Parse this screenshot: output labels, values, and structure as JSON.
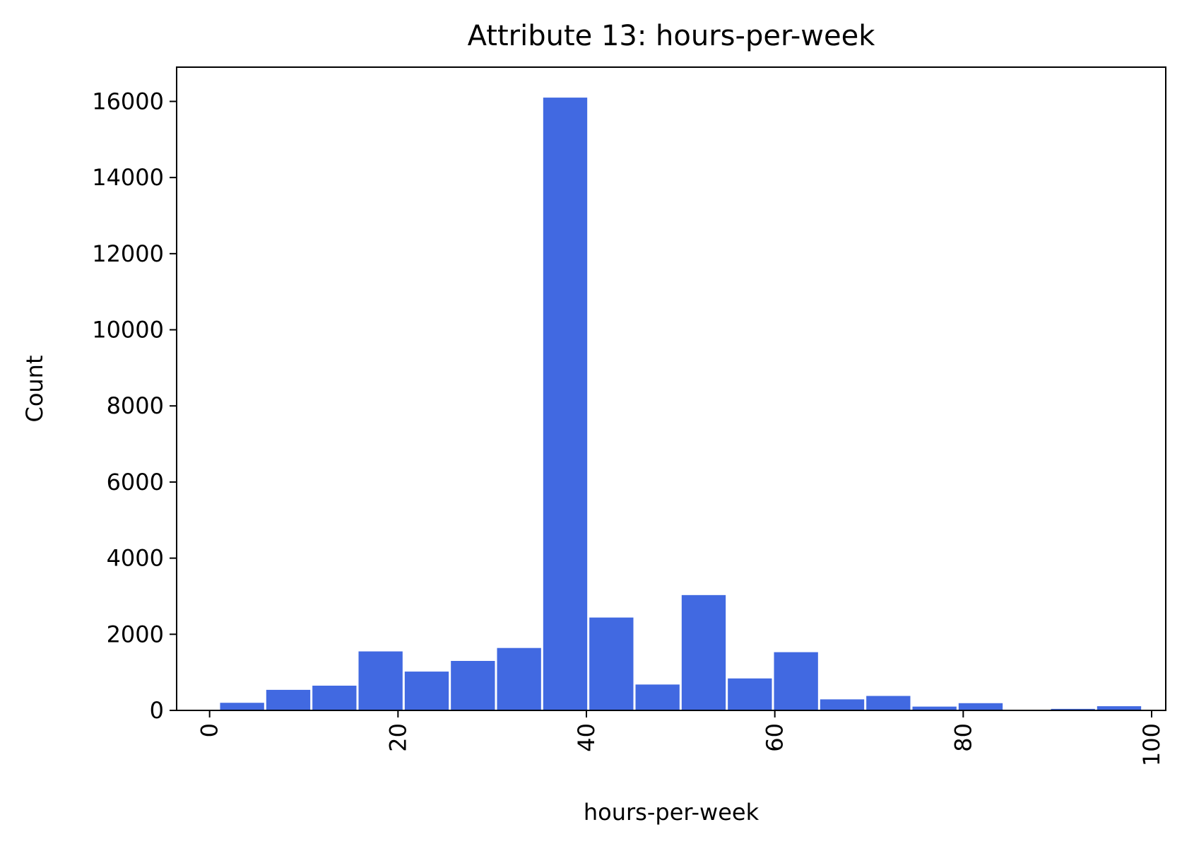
{
  "chart_data": {
    "type": "bar",
    "title": "Attribute 13: hours-per-week",
    "xlabel": "hours-per-week",
    "ylabel": "Count",
    "xlim": [
      -3.5,
      101.5
    ],
    "ylim": [
      0,
      16900
    ],
    "xticks": [
      0,
      20,
      40,
      60,
      80,
      100
    ],
    "yticks": [
      0,
      2000,
      4000,
      6000,
      8000,
      10000,
      12000,
      14000,
      16000
    ],
    "grid": false,
    "legend": "none",
    "bar_color": "#4169e1",
    "bins": [
      {
        "start": 1.0,
        "end": 5.9,
        "count": 200
      },
      {
        "start": 5.9,
        "end": 10.8,
        "count": 540
      },
      {
        "start": 10.8,
        "end": 15.7,
        "count": 650
      },
      {
        "start": 15.7,
        "end": 20.6,
        "count": 1550
      },
      {
        "start": 20.6,
        "end": 25.5,
        "count": 1020
      },
      {
        "start": 25.5,
        "end": 30.4,
        "count": 1300
      },
      {
        "start": 30.4,
        "end": 35.3,
        "count": 1640
      },
      {
        "start": 35.3,
        "end": 40.2,
        "count": 16100
      },
      {
        "start": 40.2,
        "end": 45.1,
        "count": 2440
      },
      {
        "start": 45.1,
        "end": 50.0,
        "count": 680
      },
      {
        "start": 50.0,
        "end": 54.9,
        "count": 3030
      },
      {
        "start": 54.9,
        "end": 59.8,
        "count": 840
      },
      {
        "start": 59.8,
        "end": 64.7,
        "count": 1530
      },
      {
        "start": 64.7,
        "end": 69.6,
        "count": 290
      },
      {
        "start": 69.6,
        "end": 74.5,
        "count": 380
      },
      {
        "start": 74.5,
        "end": 79.4,
        "count": 100
      },
      {
        "start": 79.4,
        "end": 84.3,
        "count": 190
      },
      {
        "start": 84.3,
        "end": 89.2,
        "count": 10
      },
      {
        "start": 89.2,
        "end": 94.1,
        "count": 40
      },
      {
        "start": 94.1,
        "end": 99.0,
        "count": 110
      }
    ]
  }
}
